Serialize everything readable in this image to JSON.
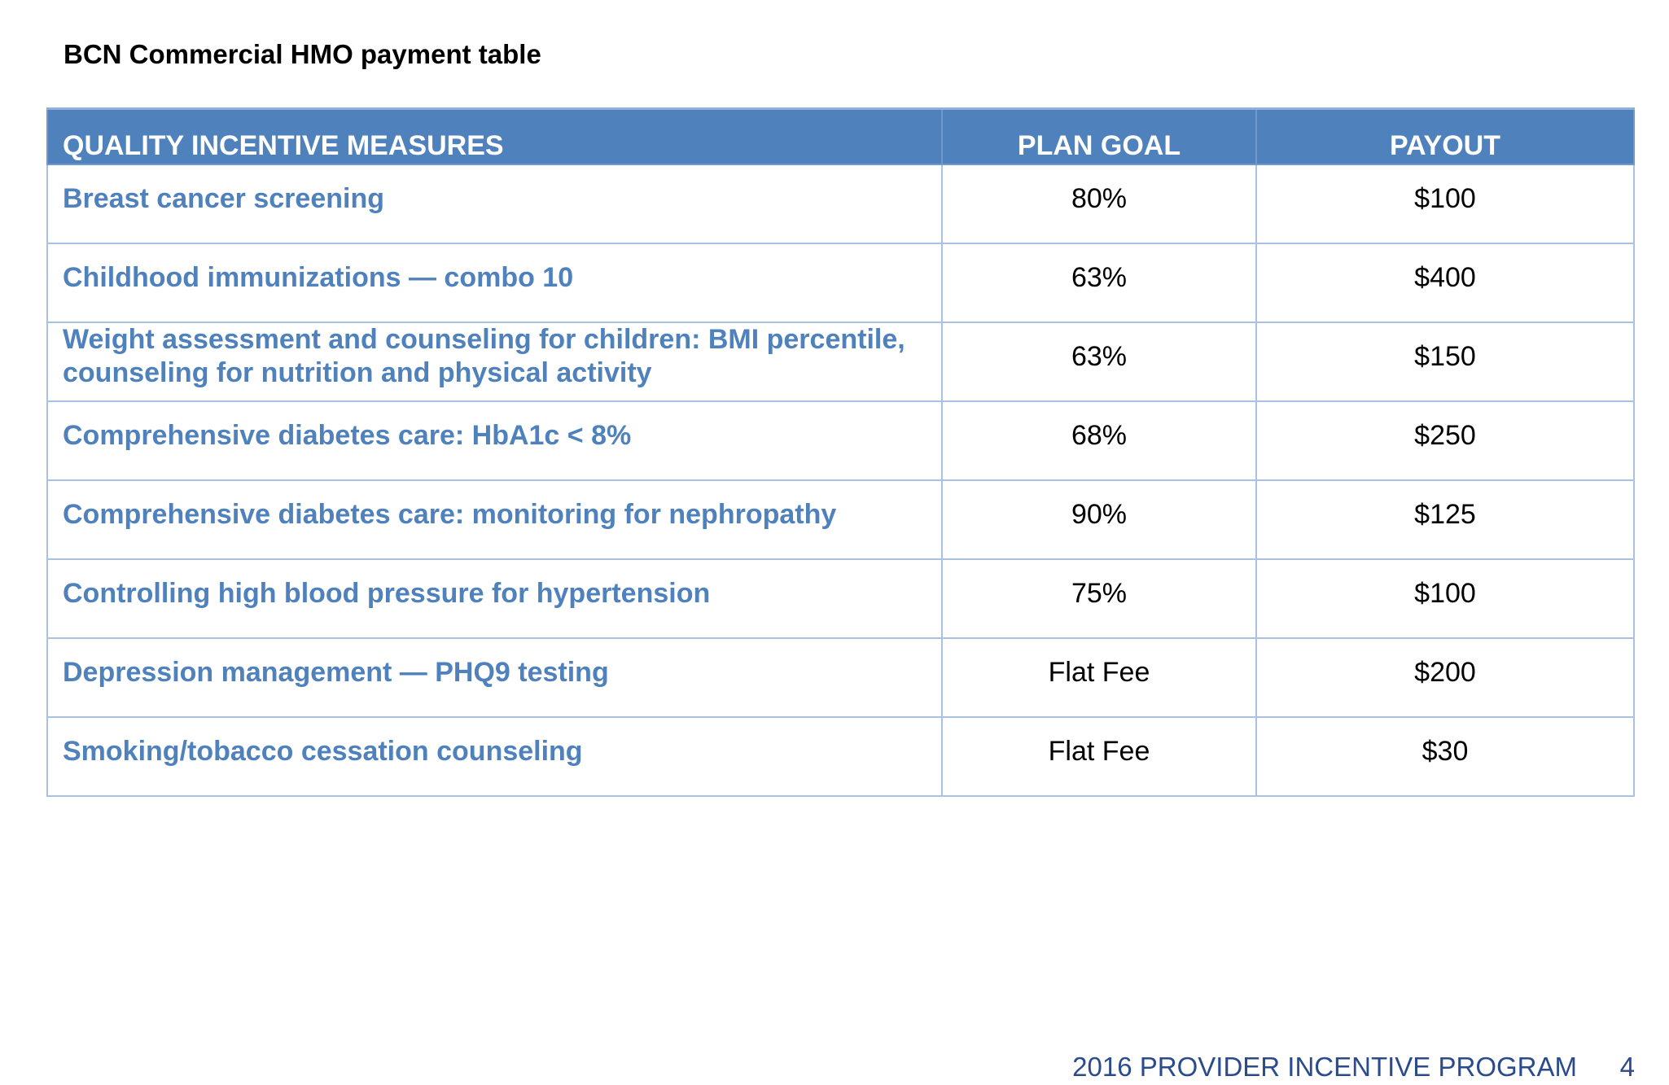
{
  "page": {
    "title": "BCN Commercial HMO payment table"
  },
  "table": {
    "headers": {
      "measure": "QUALITY INCENTIVE MEASURES",
      "plan_goal": "PLAN GOAL",
      "payout": "PAYOUT"
    },
    "rows": [
      {
        "measure": "Breast cancer screening",
        "plan_goal": "80%",
        "payout": "$100"
      },
      {
        "measure": "Childhood immunizations — combo 10",
        "plan_goal": "63%",
        "payout": "$400"
      },
      {
        "measure": "Weight assessment and counseling for children: BMI percentile, counseling for nutrition and physical activity",
        "plan_goal": "63%",
        "payout": "$150"
      },
      {
        "measure": "Comprehensive diabetes care: HbA1c < 8%",
        "plan_goal": "68%",
        "payout": "$250"
      },
      {
        "measure": "Comprehensive diabetes care: monitoring for nephropathy",
        "plan_goal": "90%",
        "payout": "$125"
      },
      {
        "measure": "Controlling high blood pressure for hypertension",
        "plan_goal": "75%",
        "payout": "$100"
      },
      {
        "measure": "Depression management — PHQ9 testing",
        "plan_goal": "Flat Fee",
        "payout": "$200"
      },
      {
        "measure": "Smoking/tobacco cessation counseling",
        "plan_goal": "Flat Fee",
        "payout": "$30"
      }
    ]
  },
  "footer": {
    "program": "2016 PROVIDER INCENTIVE PROGRAM",
    "page_number": "4"
  },
  "colors": {
    "header_fill": "#4f81bd",
    "measure_text": "#4f81bd",
    "grid_line": "#a9c2e4",
    "footer_text": "#2a4b8c"
  }
}
